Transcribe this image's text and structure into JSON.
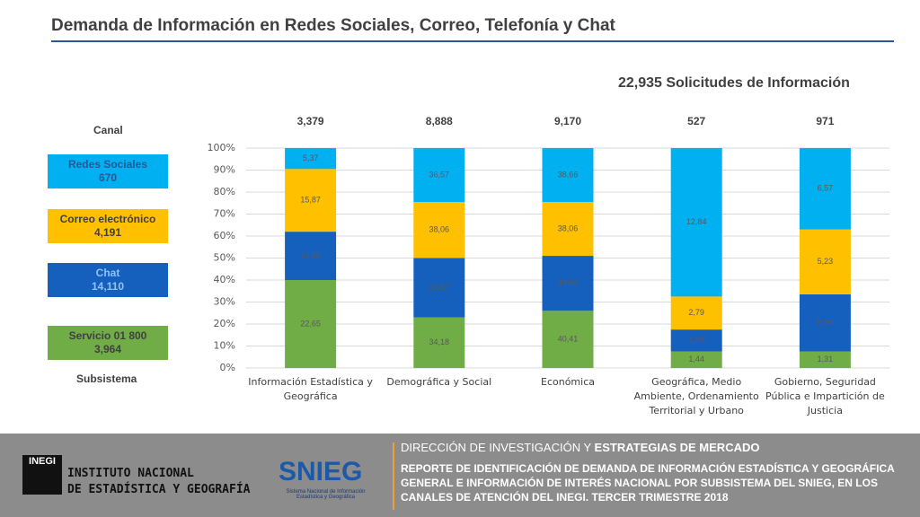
{
  "chart_data": {
    "type": "stacked_bar",
    "title": "Demanda de Información en Redes Sociales, Correo, Telefonía y Chat",
    "headline": "22,935 Solicitudes de Información",
    "legend_title": "Canal",
    "legend_footer": "Subsistema",
    "categories": [
      "Información Estadística y Geográfica",
      "Demográfica y Social",
      "Económica",
      "Geográfica, Medio Ambiente, Ordenamiento Territorial y Urbano",
      "Gobierno, Seguridad Pública e Impartición de Justicia"
    ],
    "category_totals": [
      "3,379",
      "8,888",
      "9,170",
      "527",
      "971"
    ],
    "ylim": [
      0,
      100
    ],
    "yticks": [
      {
        "value": 0,
        "label": "0%"
      },
      {
        "value": 10,
        "label": "10%"
      },
      {
        "value": 20,
        "label": "20%"
      },
      {
        "value": 30,
        "label": "30%"
      },
      {
        "value": 40,
        "label": "40%"
      },
      {
        "value": 50,
        "label": "50%"
      },
      {
        "value": 60,
        "label": "60%"
      },
      {
        "value": 70,
        "label": "70%"
      },
      {
        "value": 80,
        "label": "80%"
      },
      {
        "value": 90,
        "label": "90%"
      },
      {
        "value": 100,
        "label": "100%"
      }
    ],
    "grid": true,
    "series": [
      {
        "name": "Servicio 01 800",
        "total": "3,964",
        "color": "#70ad47",
        "values": [
          40,
          23,
          26,
          7.5,
          7.5
        ],
        "labels": [
          "22,65",
          "34,18",
          "40,41",
          "1,44",
          "1,31"
        ]
      },
      {
        "name": "Chat",
        "total": "14,110",
        "color": "#1560bd",
        "values": [
          22,
          27,
          25,
          10,
          26
        ],
        "labels": [
          "12,58",
          "30,97",
          "43,60",
          "1,83",
          "5,65"
        ]
      },
      {
        "name": "Correo electrónico",
        "total": "4,191",
        "color": "#ffc000",
        "values": [
          28.5,
          25.5,
          24.5,
          15,
          29.5
        ],
        "labels": [
          "15,87",
          "38,06",
          "38,06",
          "2,79",
          "5,23"
        ]
      },
      {
        "name": "Redes Sociales",
        "total": "670",
        "color": "#00b0f0",
        "values": [
          9.5,
          24.5,
          24.5,
          67.5,
          37
        ],
        "labels": [
          "5,37",
          "36,57",
          "38,66",
          "12,84",
          "6,57"
        ]
      }
    ]
  },
  "footer": {
    "org_line1": "INSTITUTO NACIONAL",
    "org_line2": "DE ESTADÍSTICA Y GEOGRAFÍA",
    "logo": "INEGI",
    "snieg": "SNIEG",
    "snieg_sub": "Sistema Nacional de Información Estadística y Geográfica",
    "direction_a": "DIRECCIÓN DE INVESTIGACIÓN Y",
    "direction_b": "ESTRATEGIAS DE MERCADO",
    "report": "REPORTE DE IDENTIFICACIÓN DE DEMANDA DE INFORMACIÓN ESTADÍSTICA Y GEOGRÁFICA GENERAL E INFORMACIÓN DE INTERÉS NACIONAL POR SUBSISTEMA DEL SNIEG, EN LOS CANALES DE ATENCIÓN DEL INEGI. TERCER TRIMESTRE 2018"
  }
}
